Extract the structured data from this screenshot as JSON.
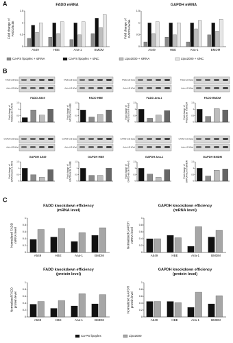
{
  "chart_data": [
    {
      "type": "bar",
      "panel": "A",
      "title": "FADD mRNA",
      "ylabel": [
        "Fold change of",
        "FADD/actin"
      ],
      "categories": [
        "A549",
        "HBE",
        "Ana-1",
        "BMDM"
      ],
      "ylim": [
        0,
        1.5
      ],
      "yticks": [
        0,
        0.5,
        1,
        1.5
      ],
      "series": [
        {
          "name": "Ca-PS lipoplex + siRNA",
          "color": "#8a8a8a",
          "values": [
            0.35,
            0.4,
            0.3,
            0.55
          ]
        },
        {
          "name": "Ca-PS lipoplex + siNC",
          "color": "#111111",
          "values": [
            0.9,
            1.0,
            1.0,
            1.2
          ]
        },
        {
          "name": "Lipo2000 + siRNA",
          "color": "#bdbdbd",
          "values": [
            0.6,
            0.55,
            0.5,
            0.8
          ]
        },
        {
          "name": "Lipo2000 + siNC",
          "color": "#e6e6e6",
          "values": [
            1.0,
            1.05,
            1.05,
            1.35
          ]
        }
      ]
    },
    {
      "type": "bar",
      "title": "GAPDH mRNA",
      "ylabel": [
        "Fold change of",
        "GAPDH/actin"
      ],
      "categories": [
        "A549",
        "HBE",
        "Ana-1",
        "BMDM"
      ],
      "ylim": [
        0,
        1.5
      ],
      "yticks": [
        0,
        0.5,
        1,
        1.5
      ],
      "series": [
        {
          "color": "#8a8a8a",
          "values": [
            0.2,
            0.4,
            0.2,
            0.5
          ]
        },
        {
          "color": "#111111",
          "values": [
            1.0,
            1.0,
            1.0,
            1.0
          ]
        },
        {
          "color": "#bdbdbd",
          "values": [
            0.55,
            0.5,
            0.75,
            0.65
          ]
        },
        {
          "color": "#e6e6e6",
          "values": [
            1.05,
            1.0,
            1.1,
            1.15
          ]
        }
      ]
    },
    {
      "type": "bar",
      "panel": "B",
      "blot_labels": [
        "FADD (28 kDa)",
        "Actin (42 kDa)"
      ],
      "title": "FADD A549",
      "ylabel": [
        "Fold change of",
        "FADD/actin in A549"
      ],
      "ylim": [
        0,
        1.5
      ],
      "yticks": [
        0,
        0.5,
        1,
        1.5
      ],
      "colors": [
        "#111111",
        "#8a8a8a",
        "#bdbdbd",
        "#666666"
      ],
      "values": [
        0.35,
        0.95,
        0.55,
        1.0
      ]
    },
    {
      "type": "bar",
      "blot_labels": [
        "FADD (28 kDa)",
        "Actin (42 kDa)"
      ],
      "title": "FADD HBE",
      "ylabel": [
        "Fold change of",
        "FADD/actin in HBE"
      ],
      "ylim": [
        0,
        1.5
      ],
      "yticks": [
        0,
        0.5,
        1,
        1.5
      ],
      "colors": [
        "#111111",
        "#8a8a8a",
        "#bdbdbd",
        "#666666"
      ],
      "values": [
        0.95,
        0.4,
        0.6,
        0.95
      ]
    },
    {
      "type": "bar",
      "blot_labels": [
        "FADD (28 kDa)",
        "Actin (42 kDa)"
      ],
      "title": "FADD Ana-1",
      "ylabel": [
        "Fold change of",
        "FADD/actin in Ana-1"
      ],
      "ylim": [
        0,
        1.5
      ],
      "yticks": [
        0,
        0.5,
        1,
        1.5
      ],
      "colors": [
        "#111111",
        "#8a8a8a",
        "#bdbdbd",
        "#666666"
      ],
      "values": [
        1.0,
        0.3,
        0.55,
        0.9
      ]
    },
    {
      "type": "bar",
      "blot_labels": [
        "FADD (28 kDa)",
        "Actin (42 kDa)"
      ],
      "title": "FADD BMDM",
      "ylabel": [
        "Fold change of",
        "FADD/actin in BMDM"
      ],
      "ylim": [
        0,
        1.5
      ],
      "yticks": [
        0,
        0.5,
        1,
        1.5
      ],
      "colors": [
        "#111111",
        "#8a8a8a",
        "#bdbdbd",
        "#666666"
      ],
      "values": [
        1.0,
        0.45,
        1.05,
        0.95
      ]
    },
    {
      "type": "bar",
      "blot_labels": [
        "GAPDH (36 kDa)",
        "Actin (42 kDa)"
      ],
      "title": "GAPDH A549",
      "ylabel": [
        "Fold change of",
        "GAPDH/actin in A549"
      ],
      "ylim": [
        0,
        1.5
      ],
      "yticks": [
        0,
        0.5,
        1,
        1.5
      ],
      "colors": [
        "#111111",
        "#8a8a8a",
        "#bdbdbd",
        "#666666"
      ],
      "values": [
        1.0,
        0.5,
        0.3,
        0.9
      ]
    },
    {
      "type": "bar",
      "blot_labels": [
        "GAPDH (36 kDa)",
        "Actin (42 kDa)"
      ],
      "title": "GAPDH HBE",
      "ylabel": [
        "Fold change of",
        "GAPDH/actin in HBE"
      ],
      "ylim": [
        0,
        1.5
      ],
      "yticks": [
        0,
        0.5,
        1,
        1.5
      ],
      "colors": [
        "#111111",
        "#8a8a8a",
        "#bdbdbd",
        "#666666"
      ],
      "values": [
        1.0,
        0.45,
        0.45,
        1.0
      ]
    },
    {
      "type": "bar",
      "blot_labels": [
        "GAPDH (36 kDa)",
        "Actin (42 kDa)"
      ],
      "title": "GAPDH Ana-1",
      "ylabel": [
        "Fold change of",
        "GAPDH/actin in Ana-1"
      ],
      "ylim": [
        0,
        1.5
      ],
      "yticks": [
        0,
        0.5,
        1,
        1.5
      ],
      "colors": [
        "#111111",
        "#8a8a8a",
        "#bdbdbd",
        "#666666"
      ],
      "values": [
        1.0,
        0.55,
        0.3,
        0.9
      ]
    },
    {
      "type": "bar",
      "blot_labels": [
        "GAPDH (36 kDa)",
        "Actin (42 kDa)"
      ],
      "title": "GAPDH BMDM",
      "ylabel": [
        "Fold change of",
        "GAPDH/actin in BMDM"
      ],
      "ylim": [
        0,
        1.5
      ],
      "yticks": [
        0,
        0.5,
        1,
        1.5
      ],
      "colors": [
        "#111111",
        "#8a8a8a",
        "#bdbdbd",
        "#666666"
      ],
      "values": [
        1.0,
        0.4,
        0.85,
        0.95
      ]
    },
    {
      "type": "bar",
      "panel": "C",
      "title": [
        "FADD knockdown efficiency",
        "(mRNA level)"
      ],
      "ylabel": [
        "Normalized FADD",
        "mRNA level"
      ],
      "categories": [
        "A549",
        "HBE",
        "Ana-1",
        "BMDM"
      ],
      "ylim": [
        0,
        1
      ],
      "yticks": [
        0,
        0.2,
        0.4,
        0.6,
        0.8,
        1
      ],
      "series": [
        {
          "name": "Ca-PS lipoplex",
          "color": "#111111",
          "values": [
            0.38,
            0.45,
            0.32,
            0.5
          ]
        },
        {
          "name": "Lipo2000",
          "color": "#a6a6a6",
          "values": [
            0.67,
            0.7,
            0.58,
            0.72
          ]
        }
      ]
    },
    {
      "type": "bar",
      "title": [
        "GAPDH knockdown efficiency",
        "(mRNA level)"
      ],
      "ylabel": [
        "Normalized GAPDH",
        "mRNA level"
      ],
      "categories": [
        "A549",
        "HBE",
        "Ana-1",
        "BMDM"
      ],
      "ylim": [
        0,
        1
      ],
      "yticks": [
        0,
        0.2,
        0.4,
        0.6,
        0.8,
        1
      ],
      "series": [
        {
          "color": "#111111",
          "values": [
            0.4,
            0.5,
            0.18,
            0.45
          ]
        },
        {
          "color": "#a6a6a6",
          "values": [
            0.4,
            0.43,
            0.75,
            0.65
          ]
        }
      ]
    },
    {
      "type": "bar",
      "title": [
        "FADD knockdown efficiency",
        "(protein level)"
      ],
      "ylabel": [
        "Normalized FADD",
        "protein level"
      ],
      "categories": [
        "A549",
        "HBE",
        "Ana-1",
        "BMDM"
      ],
      "ylim": [
        0,
        1
      ],
      "yticks": [
        0,
        0.2,
        0.4,
        0.6,
        0.8,
        1
      ],
      "series": [
        {
          "color": "#111111",
          "values": [
            0.37,
            0.25,
            0.32,
            0.38
          ]
        },
        {
          "color": "#a6a6a6",
          "values": [
            0.45,
            0.48,
            0.68,
            0.65
          ]
        }
      ]
    },
    {
      "type": "bar",
      "title": [
        "GAPDH knockdown efficiency",
        "(protein level)"
      ],
      "ylabel": [
        "Normalized GAPDH",
        "protein level"
      ],
      "categories": [
        "A549",
        "HBE",
        "Ana-1",
        "BMDM"
      ],
      "ylim": [
        0,
        1
      ],
      "yticks": [
        0,
        0.2,
        0.4,
        0.6,
        0.8,
        1
      ],
      "series": [
        {
          "color": "#111111",
          "values": [
            0.45,
            0.45,
            0.28,
            0.38
          ]
        },
        {
          "color": "#a6a6a6",
          "values": [
            0.45,
            0.42,
            0.72,
            0.62
          ]
        }
      ]
    }
  ]
}
